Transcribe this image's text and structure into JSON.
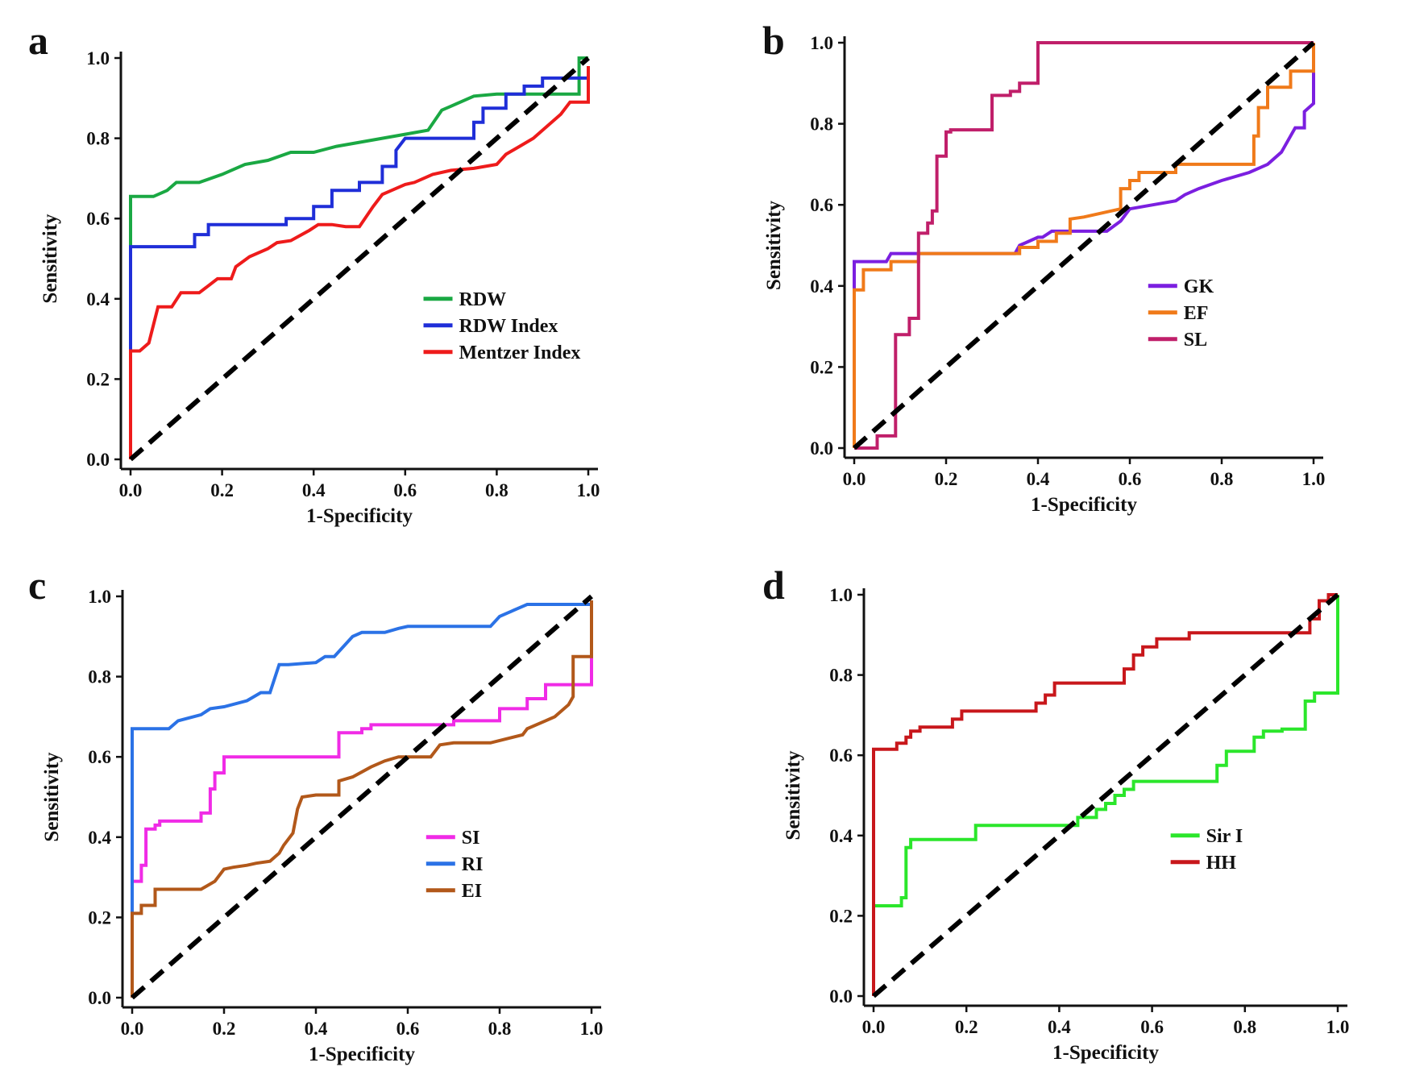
{
  "chart_data": [
    {
      "type": "line",
      "panel": "a",
      "xlabel": "1-Specificity",
      "ylabel": "Sensitivity",
      "xlim": [
        0,
        1
      ],
      "ylim": [
        0,
        1
      ],
      "xticks": [
        "0.0",
        "0.2",
        "0.4",
        "0.6",
        "0.8",
        "1.0"
      ],
      "yticks": [
        "0.0",
        "0.2",
        "0.4",
        "0.6",
        "0.8",
        "1.0"
      ],
      "legend_position": "lower-right",
      "reference_line": true,
      "series": [
        {
          "name": "RDW",
          "color": "#1aa843",
          "x": [
            0,
            0,
            0.05,
            0.08,
            0.1,
            0.15,
            0.2,
            0.25,
            0.3,
            0.35,
            0.4,
            0.45,
            0.5,
            0.55,
            0.6,
            0.65,
            0.68,
            0.7,
            0.75,
            0.8,
            0.98,
            0.98,
            1.0
          ],
          "y": [
            0,
            0.655,
            0.655,
            0.67,
            0.69,
            0.69,
            0.71,
            0.735,
            0.745,
            0.765,
            0.765,
            0.78,
            0.79,
            0.8,
            0.81,
            0.82,
            0.87,
            0.88,
            0.905,
            0.91,
            0.91,
            1.0,
            1.0
          ]
        },
        {
          "name": "RDW Index",
          "color": "#1f2ed8",
          "x": [
            0,
            0,
            0.14,
            0.14,
            0.17,
            0.17,
            0.34,
            0.34,
            0.4,
            0.4,
            0.44,
            0.44,
            0.5,
            0.5,
            0.55,
            0.55,
            0.58,
            0.58,
            0.6,
            0.75,
            0.75,
            0.77,
            0.77,
            0.82,
            0.82,
            0.86,
            0.86,
            0.9,
            0.9,
            1.0,
            1.0
          ],
          "y": [
            0,
            0.53,
            0.53,
            0.56,
            0.56,
            0.585,
            0.585,
            0.6,
            0.6,
            0.63,
            0.63,
            0.67,
            0.67,
            0.69,
            0.69,
            0.73,
            0.73,
            0.77,
            0.8,
            0.8,
            0.84,
            0.84,
            0.875,
            0.875,
            0.91,
            0.91,
            0.93,
            0.93,
            0.95,
            0.95,
            0.98
          ]
        },
        {
          "name": "Mentzer Index",
          "color": "#ee1b1b",
          "x": [
            0,
            0,
            0.02,
            0.04,
            0.06,
            0.09,
            0.11,
            0.15,
            0.19,
            0.22,
            0.23,
            0.26,
            0.3,
            0.32,
            0.35,
            0.39,
            0.41,
            0.44,
            0.47,
            0.5,
            0.53,
            0.55,
            0.57,
            0.6,
            0.62,
            0.66,
            0.7,
            0.75,
            0.8,
            0.82,
            0.85,
            0.88,
            0.9,
            0.94,
            0.96,
            1.0,
            1.0
          ],
          "y": [
            0,
            0.27,
            0.27,
            0.29,
            0.38,
            0.38,
            0.415,
            0.415,
            0.45,
            0.45,
            0.48,
            0.505,
            0.525,
            0.54,
            0.545,
            0.57,
            0.585,
            0.585,
            0.58,
            0.58,
            0.63,
            0.66,
            0.67,
            0.685,
            0.69,
            0.71,
            0.72,
            0.725,
            0.735,
            0.76,
            0.78,
            0.8,
            0.82,
            0.86,
            0.89,
            0.89,
            0.98
          ]
        }
      ]
    },
    {
      "type": "line",
      "panel": "b",
      "xlabel": "1-Specificity",
      "ylabel": "Sensitivity",
      "xlim": [
        0,
        1
      ],
      "ylim": [
        0,
        1
      ],
      "xticks": [
        "0.0",
        "0.2",
        "0.4",
        "0.6",
        "0.8",
        "1.0"
      ],
      "yticks": [
        "0.0",
        "0.2",
        "0.4",
        "0.6",
        "0.8",
        "1.0"
      ],
      "legend_position": "lower-right",
      "reference_line": true,
      "series": [
        {
          "name": "GK",
          "color": "#7b1fe0",
          "x": [
            0,
            0,
            0.07,
            0.08,
            0.35,
            0.36,
            0.38,
            0.4,
            0.41,
            0.43,
            0.55,
            0.58,
            0.6,
            0.65,
            0.7,
            0.72,
            0.75,
            0.8,
            0.86,
            0.9,
            0.93,
            0.95,
            0.96,
            0.98,
            0.98,
            1.0,
            1.0
          ],
          "y": [
            0,
            0.46,
            0.46,
            0.48,
            0.48,
            0.5,
            0.51,
            0.52,
            0.52,
            0.535,
            0.535,
            0.56,
            0.59,
            0.6,
            0.61,
            0.625,
            0.64,
            0.66,
            0.68,
            0.7,
            0.73,
            0.77,
            0.79,
            0.79,
            0.83,
            0.85,
            0.93
          ]
        },
        {
          "name": "EF",
          "color": "#f07a1a",
          "x": [
            0,
            0,
            0.02,
            0.02,
            0.08,
            0.08,
            0.14,
            0.14,
            0.36,
            0.36,
            0.4,
            0.4,
            0.44,
            0.44,
            0.47,
            0.47,
            0.5,
            0.58,
            0.58,
            0.6,
            0.6,
            0.62,
            0.62,
            0.7,
            0.7,
            0.87,
            0.87,
            0.88,
            0.88,
            0.9,
            0.9,
            0.95,
            0.95,
            1.0,
            1.0
          ],
          "y": [
            0,
            0.39,
            0.39,
            0.44,
            0.44,
            0.46,
            0.46,
            0.48,
            0.48,
            0.495,
            0.495,
            0.51,
            0.51,
            0.53,
            0.53,
            0.565,
            0.57,
            0.59,
            0.64,
            0.64,
            0.66,
            0.66,
            0.68,
            0.68,
            0.7,
            0.7,
            0.77,
            0.77,
            0.84,
            0.84,
            0.89,
            0.89,
            0.93,
            0.93,
            1.0
          ]
        },
        {
          "name": "SL",
          "color": "#c01f6a",
          "x": [
            0,
            0.05,
            0.05,
            0.09,
            0.09,
            0.12,
            0.12,
            0.14,
            0.14,
            0.16,
            0.16,
            0.17,
            0.17,
            0.18,
            0.18,
            0.2,
            0.2,
            0.21,
            0.21,
            0.25,
            0.25,
            0.3,
            0.3,
            0.34,
            0.34,
            0.36,
            0.36,
            0.38,
            0.38,
            0.4,
            0.4,
            1.0
          ],
          "y": [
            0,
            0,
            0.03,
            0.03,
            0.28,
            0.28,
            0.32,
            0.32,
            0.53,
            0.53,
            0.555,
            0.555,
            0.585,
            0.585,
            0.72,
            0.72,
            0.78,
            0.78,
            0.785,
            0.785,
            0.785,
            0.785,
            0.87,
            0.87,
            0.88,
            0.88,
            0.9,
            0.9,
            0.9,
            0.9,
            1.0,
            1.0
          ]
        }
      ]
    },
    {
      "type": "line",
      "panel": "c",
      "xlabel": "1-Specificity",
      "ylabel": "Sensitivity",
      "xlim": [
        0,
        1
      ],
      "ylim": [
        0,
        1
      ],
      "xticks": [
        "0.0",
        "0.2",
        "0.4",
        "0.6",
        "0.8",
        "1.0"
      ],
      "yticks": [
        "0.0",
        "0.2",
        "0.4",
        "0.6",
        "0.8",
        "1.0"
      ],
      "legend_position": "lower-right",
      "reference_line": true,
      "series": [
        {
          "name": "SI",
          "color": "#f02be6",
          "x": [
            0,
            0,
            0.02,
            0.02,
            0.03,
            0.03,
            0.05,
            0.05,
            0.06,
            0.06,
            0.15,
            0.15,
            0.17,
            0.17,
            0.18,
            0.18,
            0.2,
            0.2,
            0.45,
            0.45,
            0.5,
            0.5,
            0.52,
            0.52,
            0.7,
            0.7,
            0.8,
            0.8,
            0.86,
            0.86,
            0.9,
            0.9,
            0.92,
            0.92,
            1.0,
            1.0
          ],
          "y": [
            0,
            0.29,
            0.29,
            0.33,
            0.33,
            0.42,
            0.42,
            0.43,
            0.43,
            0.44,
            0.44,
            0.46,
            0.46,
            0.52,
            0.52,
            0.56,
            0.56,
            0.6,
            0.6,
            0.66,
            0.66,
            0.67,
            0.67,
            0.68,
            0.68,
            0.69,
            0.69,
            0.72,
            0.72,
            0.745,
            0.745,
            0.78,
            0.78,
            0.78,
            0.78,
            0.99
          ]
        },
        {
          "name": "RI",
          "color": "#2b72e6",
          "x": [
            0,
            0,
            0.08,
            0.1,
            0.15,
            0.17,
            0.2,
            0.25,
            0.28,
            0.3,
            0.32,
            0.34,
            0.4,
            0.42,
            0.44,
            0.48,
            0.5,
            0.55,
            0.58,
            0.6,
            0.66,
            0.78,
            0.8,
            0.82,
            0.84,
            0.86,
            0.98,
            1.0
          ],
          "y": [
            0,
            0.67,
            0.67,
            0.69,
            0.705,
            0.72,
            0.725,
            0.74,
            0.76,
            0.76,
            0.83,
            0.83,
            0.835,
            0.85,
            0.85,
            0.9,
            0.91,
            0.91,
            0.92,
            0.925,
            0.925,
            0.925,
            0.95,
            0.96,
            0.97,
            0.98,
            0.98,
            0.98
          ]
        },
        {
          "name": "EI",
          "color": "#b2581a",
          "x": [
            0,
            0,
            0.02,
            0.02,
            0.05,
            0.05,
            0.15,
            0.18,
            0.2,
            0.22,
            0.25,
            0.27,
            0.3,
            0.32,
            0.33,
            0.35,
            0.36,
            0.37,
            0.4,
            0.45,
            0.45,
            0.48,
            0.52,
            0.55,
            0.58,
            0.6,
            0.65,
            0.67,
            0.7,
            0.78,
            0.85,
            0.86,
            0.9,
            0.92,
            0.95,
            0.96,
            0.96,
            1.0,
            1.0
          ],
          "y": [
            0,
            0.21,
            0.21,
            0.23,
            0.23,
            0.27,
            0.27,
            0.29,
            0.32,
            0.325,
            0.33,
            0.335,
            0.34,
            0.36,
            0.38,
            0.41,
            0.47,
            0.5,
            0.505,
            0.505,
            0.54,
            0.55,
            0.575,
            0.59,
            0.6,
            0.6,
            0.6,
            0.63,
            0.635,
            0.635,
            0.655,
            0.67,
            0.69,
            0.7,
            0.73,
            0.75,
            0.85,
            0.85,
            0.99
          ]
        }
      ]
    },
    {
      "type": "line",
      "panel": "d",
      "xlabel": "1-Specificity",
      "ylabel": "Sensitivity",
      "xlim": [
        0,
        1
      ],
      "ylim": [
        0,
        1
      ],
      "xticks": [
        "0.0",
        "0.2",
        "0.4",
        "0.6",
        "0.8",
        "1.0"
      ],
      "yticks": [
        "0.0",
        "0.2",
        "0.4",
        "0.6",
        "0.8",
        "1.0"
      ],
      "legend_position": "lower-right",
      "reference_line": true,
      "series": [
        {
          "name": "Sir I",
          "color": "#2be62b",
          "x": [
            0,
            0,
            0.06,
            0.06,
            0.07,
            0.07,
            0.08,
            0.08,
            0.22,
            0.22,
            0.44,
            0.44,
            0.48,
            0.48,
            0.5,
            0.5,
            0.52,
            0.52,
            0.54,
            0.54,
            0.56,
            0.56,
            0.6,
            0.6,
            0.74,
            0.74,
            0.76,
            0.76,
            0.82,
            0.82,
            0.84,
            0.84,
            0.88,
            0.88,
            0.93,
            0.93,
            0.95,
            0.95,
            1.0,
            1.0
          ],
          "y": [
            0,
            0.225,
            0.225,
            0.245,
            0.245,
            0.37,
            0.37,
            0.39,
            0.39,
            0.425,
            0.425,
            0.445,
            0.445,
            0.465,
            0.465,
            0.48,
            0.48,
            0.5,
            0.5,
            0.515,
            0.515,
            0.535,
            0.535,
            0.535,
            0.535,
            0.575,
            0.575,
            0.61,
            0.61,
            0.645,
            0.645,
            0.66,
            0.66,
            0.665,
            0.665,
            0.735,
            0.735,
            0.755,
            0.755,
            1.0
          ]
        },
        {
          "name": "HH",
          "color": "#c8171b",
          "x": [
            0,
            0,
            0.05,
            0.05,
            0.07,
            0.07,
            0.08,
            0.08,
            0.1,
            0.1,
            0.17,
            0.17,
            0.19,
            0.19,
            0.35,
            0.35,
            0.37,
            0.37,
            0.39,
            0.39,
            0.54,
            0.54,
            0.56,
            0.56,
            0.58,
            0.58,
            0.61,
            0.61,
            0.68,
            0.68,
            0.94,
            0.94,
            0.96,
            0.96,
            0.98,
            0.98,
            1.0
          ],
          "y": [
            0,
            0.615,
            0.615,
            0.63,
            0.63,
            0.645,
            0.645,
            0.66,
            0.66,
            0.67,
            0.67,
            0.69,
            0.69,
            0.71,
            0.71,
            0.73,
            0.73,
            0.75,
            0.75,
            0.78,
            0.78,
            0.815,
            0.815,
            0.85,
            0.85,
            0.87,
            0.87,
            0.89,
            0.89,
            0.905,
            0.905,
            0.94,
            0.94,
            0.985,
            0.985,
            1.0,
            1.0
          ]
        }
      ]
    }
  ]
}
